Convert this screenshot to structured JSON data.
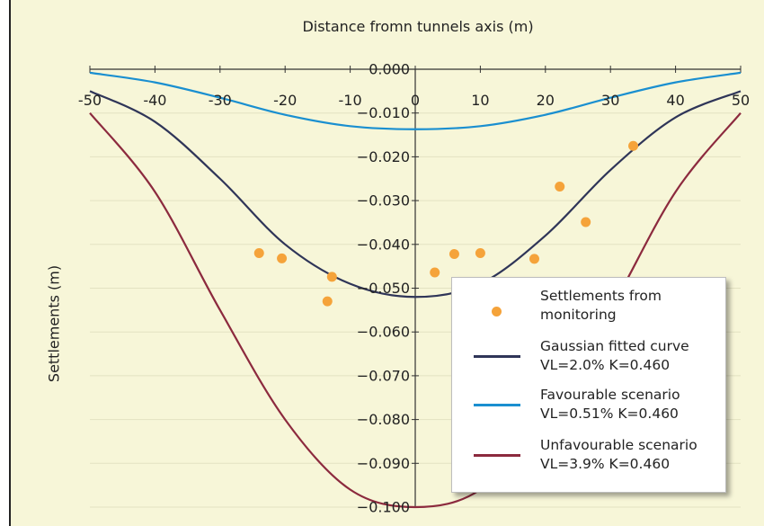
{
  "chart_data": {
    "type": "line",
    "xlabel": "Distance fromn tunnels axis (m)",
    "ylabel": "Settlements (m)",
    "xlim": [
      -50,
      50
    ],
    "ylim": [
      -0.1,
      0.0
    ],
    "x_axis_position": "top",
    "x_ticks": [
      -50,
      -40,
      -30,
      -20,
      -10,
      0,
      10,
      20,
      30,
      40,
      50
    ],
    "x_tick_labels": [
      "-50",
      "-40",
      "-30",
      "-20",
      "-10",
      "0",
      "10",
      "20",
      "30",
      "40",
      "50"
    ],
    "y_ticks": [
      0.0,
      -0.01,
      -0.02,
      -0.03,
      -0.04,
      -0.05,
      -0.06,
      -0.07,
      -0.08,
      -0.09,
      -0.1
    ],
    "y_tick_labels": [
      "0.000",
      "−0.010",
      "−0.020",
      "−0.030",
      "−0.040",
      "−0.050",
      "−0.060",
      "−0.070",
      "−0.080",
      "−0.090",
      "−0.100"
    ],
    "grid": "horizontal",
    "legend_position": "bottom-right",
    "series": [
      {
        "kind": "line",
        "color": "#2f3558",
        "x": [
          -50,
          -40,
          -30,
          -20,
          -10,
          0,
          10,
          20,
          30,
          40,
          50
        ],
        "y": [
          -0.005,
          -0.012,
          -0.025,
          -0.04,
          -0.049,
          -0.052,
          -0.049,
          -0.038,
          -0.023,
          -0.011,
          -0.005
        ]
      },
      {
        "kind": "line",
        "color": "#1a8fd0",
        "x": [
          -50,
          -40,
          -30,
          -20,
          -10,
          0,
          10,
          20,
          30,
          40,
          50
        ],
        "y": [
          -0.0008,
          -0.003,
          -0.0065,
          -0.0104,
          -0.013,
          -0.0137,
          -0.013,
          -0.0104,
          -0.0065,
          -0.003,
          -0.0008
        ]
      },
      {
        "kind": "line",
        "color": "#8c2a3e",
        "x": [
          -50,
          -40,
          -30,
          -20,
          -10,
          0,
          10,
          20,
          30,
          40,
          50
        ],
        "y": [
          -0.01,
          -0.028,
          -0.055,
          -0.08,
          -0.096,
          -0.1,
          -0.096,
          -0.08,
          -0.055,
          -0.028,
          -0.01
        ]
      },
      {
        "kind": "scatter",
        "color": "#f5a33a",
        "points": [
          [
            -24,
            -0.042
          ],
          [
            -20.5,
            -0.0432
          ],
          [
            -13.5,
            -0.053
          ],
          [
            -12.8,
            -0.0474
          ],
          [
            3,
            -0.0464
          ],
          [
            6,
            -0.0422
          ],
          [
            10,
            -0.042
          ],
          [
            18.3,
            -0.0433
          ],
          [
            22.2,
            -0.0268
          ],
          [
            26.2,
            -0.0349
          ],
          [
            33.5,
            -0.0175
          ]
        ]
      }
    ]
  },
  "legend": {
    "items": [
      {
        "type": "marker",
        "color": "#f5a33a",
        "line1": "Settlements from",
        "line2": "monitoring"
      },
      {
        "type": "line",
        "color": "#2f3558",
        "line1": "Gaussian fitted curve",
        "line2": "VL=2.0% K=0.460"
      },
      {
        "type": "line",
        "color": "#1a8fd0",
        "line1": "Favourable scenario",
        "line2": "VL=0.51% K=0.460"
      },
      {
        "type": "line",
        "color": "#8c2a3e",
        "line1": "Unfavourable scenario",
        "line2": "VL=3.9% K=0.460"
      }
    ]
  }
}
